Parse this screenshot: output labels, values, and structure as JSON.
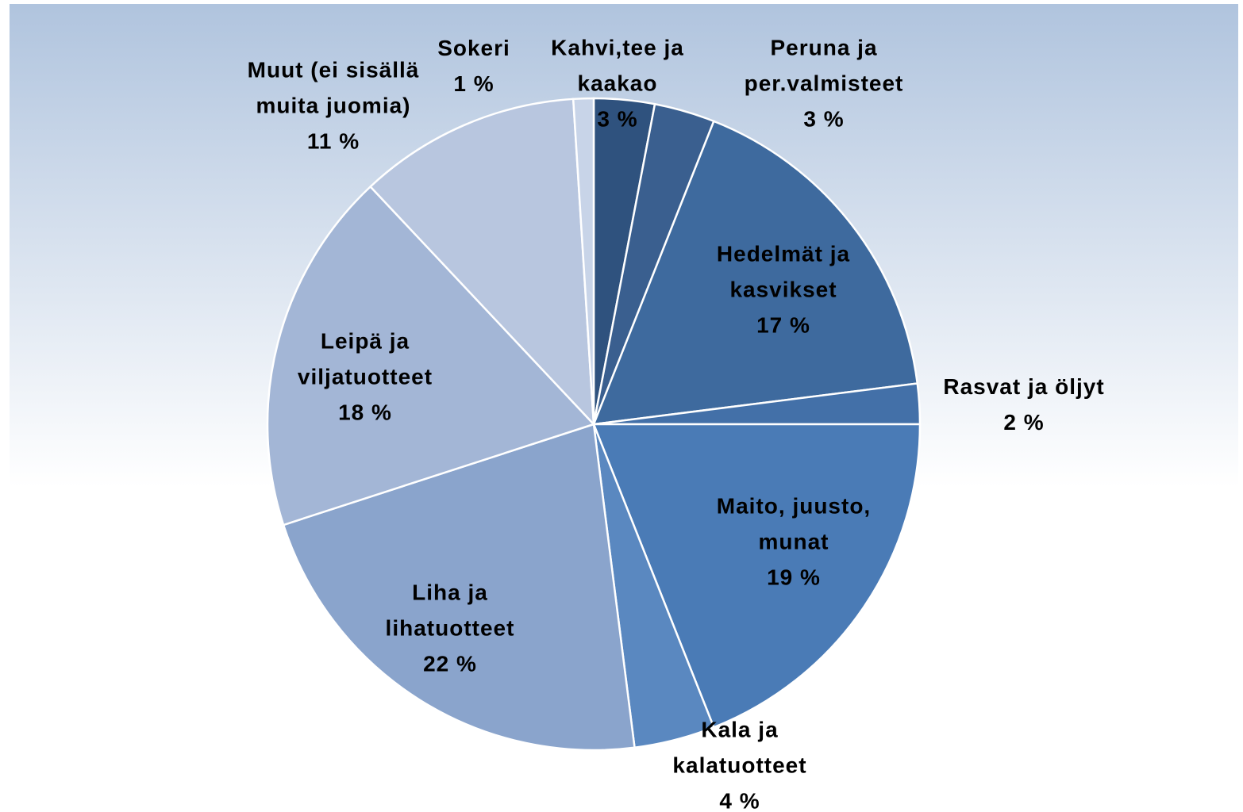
{
  "chart_data": {
    "type": "pie",
    "categories": [
      "Kahvi,tee ja kaakao",
      "Peruna ja per.valmisteet",
      "Hedelmät ja kasvikset",
      "Rasvat ja öljyt",
      "Maito, juusto, munat",
      "Kala ja kalatuotteet",
      "Liha ja lihatuotteet",
      "Leipä ja viljatuotteet",
      "Muut (ei sisällä muita juomia)",
      "Sokeri"
    ],
    "values": [
      3,
      3,
      17,
      2,
      19,
      4,
      22,
      18,
      11,
      1
    ],
    "value_labels": [
      "3 %",
      "3 %",
      "17 %",
      "2 %",
      "19 %",
      "4 %",
      "22 %",
      "18 %",
      "11 %",
      "1 %"
    ],
    "colors": [
      "#2f527e",
      "#3a5f8f",
      "#3e6a9e",
      "#4370a8",
      "#4a7bb6",
      "#5a88c0",
      "#8aa4cc",
      "#a3b6d6",
      "#b8c6df",
      "#c8d4e8"
    ]
  }
}
